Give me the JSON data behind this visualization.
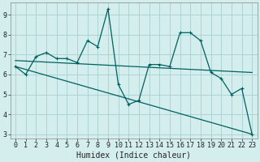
{
  "xlabel": "Humidex (Indice chaleur)",
  "bg_color": "#d4eeee",
  "grid_color": "#aacece",
  "line_color": "#006060",
  "xlim": [
    -0.5,
    23.5
  ],
  "ylim": [
    2.8,
    9.6
  ],
  "yticks": [
    3,
    4,
    5,
    6,
    7,
    8,
    9
  ],
  "xticks": [
    0,
    1,
    2,
    3,
    4,
    5,
    6,
    7,
    8,
    9,
    10,
    11,
    12,
    13,
    14,
    15,
    16,
    17,
    18,
    19,
    20,
    21,
    22,
    23
  ],
  "line1_x": [
    0,
    1,
    2,
    3,
    4,
    5,
    6,
    7,
    8,
    9,
    10,
    11,
    12,
    13,
    14,
    15,
    16,
    17,
    18,
    19,
    20,
    21,
    22,
    23
  ],
  "line1_y": [
    6.4,
    6.0,
    6.9,
    7.1,
    6.8,
    6.8,
    6.6,
    7.7,
    7.4,
    9.3,
    5.5,
    4.5,
    4.7,
    6.5,
    6.5,
    6.4,
    8.1,
    8.1,
    7.7,
    6.1,
    5.8,
    5.0,
    5.3,
    3.0
  ],
  "line2_x": [
    0,
    23
  ],
  "line2_y": [
    6.4,
    3.0
  ],
  "line3_x": [
    0,
    23
  ],
  "line3_y": [
    6.7,
    6.1
  ],
  "xlabel_fontsize": 7,
  "tick_fontsize": 6,
  "lw": 0.9,
  "marker_size": 3
}
